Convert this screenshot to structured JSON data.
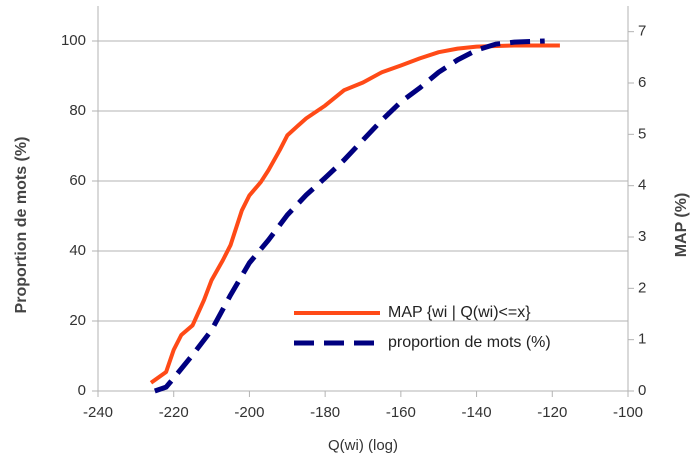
{
  "chart_data": {
    "type": "line",
    "x_label": "Q(wi) (log)",
    "y_label": "Proportion de mots (%)",
    "y2_label": "MAP (%)",
    "xlim": [
      -240,
      -100
    ],
    "xticks": [
      -240,
      -220,
      -200,
      -180,
      -160,
      -140,
      -120,
      -100
    ],
    "ylim": [
      0,
      110
    ],
    "yticks": [
      0,
      20,
      40,
      60,
      80,
      100
    ],
    "y2lim": [
      0,
      7.5
    ],
    "y2ticks": [
      0,
      1,
      2,
      3,
      4,
      5,
      6,
      7
    ],
    "grid": true,
    "legend": "lower right",
    "series": [
      {
        "name": "MAP {wi | Q(wi)<=x}",
        "color": "#ff4a17",
        "axis": "y2",
        "x": [
          -226,
          -222,
          -220,
          -218,
          -215,
          -212,
          -210,
          -207,
          -205,
          -202,
          -200,
          -197,
          -195,
          -192,
          -190,
          -187,
          -185,
          -180,
          -175,
          -170,
          -165,
          -160,
          -155,
          -150,
          -145,
          -140,
          -130,
          -118
        ],
        "values": [
          0.16,
          0.37,
          0.8,
          1.09,
          1.28,
          1.77,
          2.16,
          2.55,
          2.84,
          3.52,
          3.81,
          4.07,
          4.3,
          4.69,
          4.98,
          5.18,
          5.31,
          5.56,
          5.86,
          6.01,
          6.21,
          6.34,
          6.48,
          6.6,
          6.67,
          6.71,
          6.73,
          6.73
        ]
      },
      {
        "name": "proportion de mots (%)",
        "color": "#000080",
        "x": [
          -225,
          -222,
          -220,
          -215,
          -210,
          -205,
          -200,
          -195,
          -190,
          -185,
          -180,
          -175,
          -170,
          -165,
          -160,
          -155,
          -150,
          -145,
          -140,
          -135,
          -130,
          -122
        ],
        "values": [
          0,
          1.1,
          3.7,
          10.3,
          17.4,
          27.4,
          36.6,
          43.1,
          50.3,
          56,
          60.9,
          66,
          71.7,
          77.4,
          82.6,
          86.6,
          91.1,
          94.6,
          97.4,
          99.1,
          99.7,
          100
        ]
      }
    ]
  }
}
